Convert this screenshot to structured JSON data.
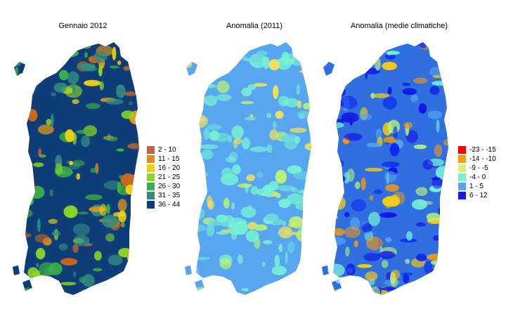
{
  "maps": [
    {
      "title": "Gennaio 2012",
      "base_color": "#0f3d78",
      "patch_colors": [
        "#2f8f80",
        "#2f8f80",
        "#3cb043",
        "#3cb043",
        "#8cd625",
        "#8cd625",
        "#f2d214",
        "#e89a1a",
        "#d06a1e"
      ],
      "legend": [
        {
          "label": "2 - 10",
          "color": "#c6604d"
        },
        {
          "label": "11 - 15",
          "color": "#e68a1d"
        },
        {
          "label": "16 - 20",
          "color": "#f5cc14"
        },
        {
          "label": "21 - 25",
          "color": "#8ed42a"
        },
        {
          "label": "26 - 30",
          "color": "#36b34a"
        },
        {
          "label": "31 - 35",
          "color": "#2d8c7f"
        },
        {
          "label": "36 - 44",
          "color": "#0f3d78"
        }
      ]
    },
    {
      "title": "Anomalia (2011)",
      "base_color": "#58a6ef",
      "patch_colors": [
        "#74f0d6",
        "#74f0d6",
        "#74f0d6",
        "#6cd8e0",
        "#b8f07a",
        "#f2e05a"
      ],
      "legend": []
    },
    {
      "title": "Anomalia (medie climatiche)",
      "base_color": "#2f6fe0",
      "patch_colors": [
        "#1414e6",
        "#1414e6",
        "#0d28f0",
        "#58a6ef",
        "#74f0d6",
        "#b8f07a",
        "#f5cc14",
        "#e89a1a"
      ],
      "legend": [
        {
          "label": "-23 - -15",
          "color": "#ff0000"
        },
        {
          "label": "-14 - -10",
          "color": "#ff9f00"
        },
        {
          "label": "-9 - -5",
          "color": "#d8f07a"
        },
        {
          "label": "-4 - 0",
          "color": "#78f0d0"
        },
        {
          "label": "1 - 5",
          "color": "#5aa2ee"
        },
        {
          "label": "6 - 12",
          "color": "#1a1ae8"
        }
      ]
    }
  ]
}
